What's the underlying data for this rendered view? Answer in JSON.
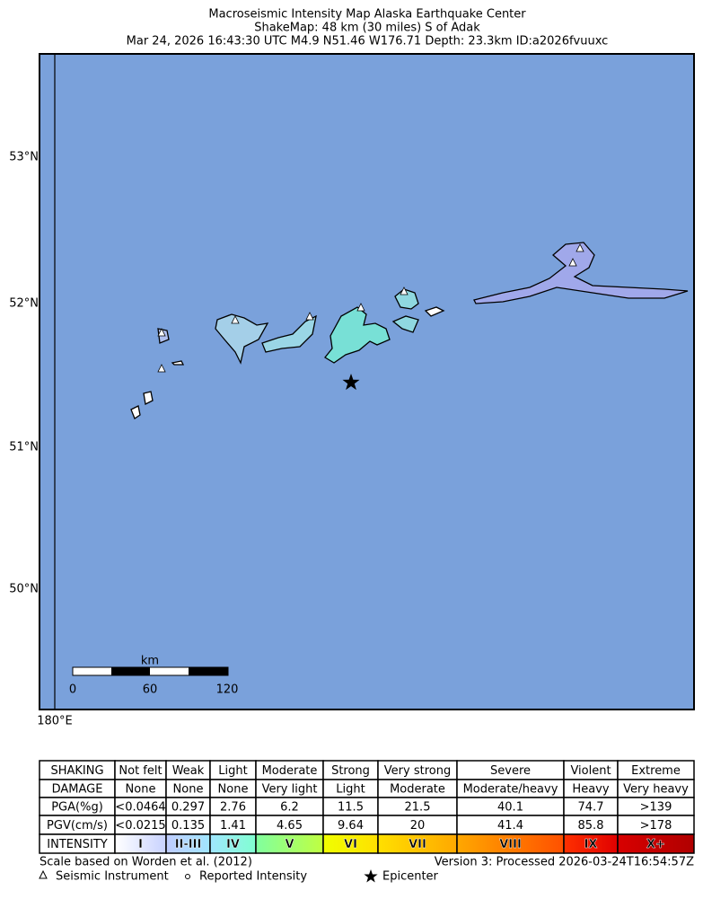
{
  "header": {
    "lines": [
      "Macroseismic Intensity Map Alaska Earthquake Center",
      "ShakeMap: 48 km (30 miles) S of Adak",
      "Mar 24, 2026 16:43:30 UTC M4.9 N51.46 W176.71 Depth: 23.3km ID:a2026fvuuxc"
    ]
  },
  "map": {
    "lat_labels": [
      "53°N",
      "52°N",
      "51°N",
      "50°N"
    ],
    "lon_label": "180°E",
    "scale": {
      "unit": "km",
      "labels": [
        "0",
        "60",
        "120"
      ]
    }
  },
  "legend": {
    "rows": [
      [
        "SHAKING",
        "Not felt",
        "Weak",
        "Light",
        "Moderate",
        "Strong",
        "Very strong",
        "Severe",
        "Violent",
        "Extreme"
      ],
      [
        "DAMAGE",
        "None",
        "None",
        "None",
        "Very light",
        "Light",
        "Moderate",
        "Moderate/heavy",
        "Heavy",
        "Very heavy"
      ],
      [
        "PGA(%g)",
        "<0.0464",
        "0.297",
        "2.76",
        "6.2",
        "11.5",
        "21.5",
        "40.1",
        "74.7",
        ">139"
      ],
      [
        "PGV(cm/s)",
        "<0.0215",
        "0.135",
        "1.41",
        "4.65",
        "9.64",
        "20",
        "41.4",
        "85.8",
        ">178"
      ],
      [
        "INTENSITY",
        "I",
        "II-III",
        "IV",
        "V",
        "VI",
        "VII",
        "VIII",
        "IX",
        "X+"
      ]
    ]
  },
  "footer": {
    "scale_note": "Scale based on Worden et al. (2012)",
    "version": "Version 3: Processed 2026-03-24T16:54:57Z",
    "symbols": [
      "Seismic Instrument",
      "Reported Intensity",
      "Epicenter"
    ]
  }
}
